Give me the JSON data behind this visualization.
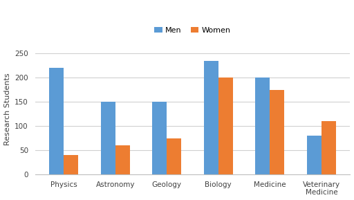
{
  "categories": [
    "Physics",
    "Astronomy",
    "Geology",
    "Biology",
    "Medicine",
    "Veterinary\nMedicine"
  ],
  "men_values": [
    220,
    150,
    150,
    235,
    200,
    80
  ],
  "women_values": [
    40,
    60,
    75,
    200,
    175,
    110
  ],
  "men_color": "#5B9BD5",
  "women_color": "#ED7D31",
  "ylabel": "Research Students",
  "ylim": [
    0,
    270
  ],
  "yticks": [
    0,
    50,
    100,
    150,
    200,
    250
  ],
  "legend_labels": [
    "Men",
    "Women"
  ],
  "bar_width": 0.28,
  "background_color": "#ffffff",
  "grid_color": "#d0d0d0",
  "label_fontsize": 8,
  "tick_fontsize": 7.5,
  "legend_fontsize": 8
}
